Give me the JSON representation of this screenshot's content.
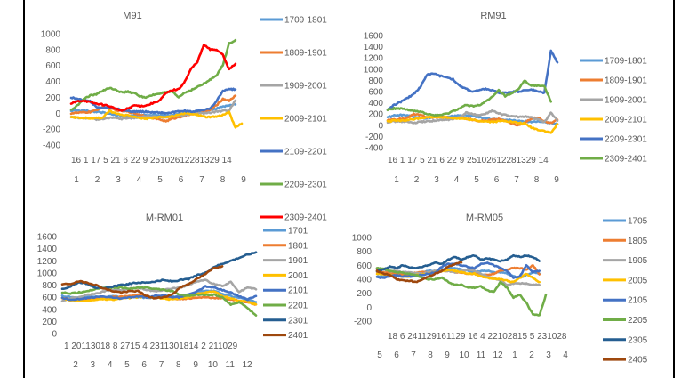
{
  "chart_data": [
    {
      "id": "m91",
      "type": "line",
      "title": "M91",
      "xlabel": "",
      "ylabel": "",
      "ylim": [
        -400,
        1000
      ],
      "yticks": [
        1000,
        800,
        600,
        400,
        200,
        0,
        -200,
        -400
      ],
      "xtick_days": "16 1 17 5 21 6 22 9 25102612281329 14",
      "xtick_months": [
        "1",
        "2",
        "3",
        "4",
        "5",
        "6",
        "7",
        "8",
        "9"
      ],
      "legend": "right",
      "grid": false,
      "series": [
        {
          "name": "1709-1801",
          "color": "#5B9BD5",
          "values": [
            30,
            35,
            30,
            25,
            20,
            10,
            -10,
            -20,
            -30,
            -30,
            -20,
            -25,
            -30,
            -20,
            -25,
            -30,
            -20,
            -10,
            0,
            10,
            20,
            30,
            40,
            60,
            80,
            100,
            110
          ]
        },
        {
          "name": "1809-1901",
          "color": "#ED7D31",
          "values": [
            0,
            5,
            10,
            15,
            40,
            80,
            60,
            40,
            30,
            20,
            0,
            -20,
            -40,
            -60,
            -80,
            -100,
            -70,
            -50,
            -30,
            -10,
            0,
            20,
            40,
            100,
            180,
            160,
            220
          ]
        },
        {
          "name": "1909-2001",
          "color": "#A5A5A5",
          "values": [
            -50,
            -55,
            -60,
            -60,
            -80,
            -70,
            -60,
            -60,
            -70,
            -60,
            -60,
            -50,
            -40,
            -40,
            -50,
            -50,
            -40,
            -30,
            -20,
            -10,
            0,
            0,
            10,
            20,
            30,
            40,
            160
          ]
        },
        {
          "name": "2009-2101",
          "color": "#FFC000",
          "values": [
            -50,
            -55,
            -60,
            -60,
            -60,
            -60,
            30,
            0,
            -20,
            -30,
            -40,
            -60,
            -70,
            -60,
            -50,
            -50,
            -40,
            -20,
            0,
            -10,
            -20,
            -40,
            -50,
            -40,
            -20,
            10,
            -180,
            -130
          ]
        },
        {
          "name": "2109-2201",
          "color": "#4472C4",
          "values": [
            200,
            180,
            160,
            150,
            80,
            60,
            80,
            60,
            40,
            30,
            20,
            20,
            20,
            10,
            10,
            0,
            10,
            20,
            30,
            20,
            30,
            40,
            60,
            150,
            280,
            300,
            300
          ]
        },
        {
          "name": "2209-2301",
          "color": "#70AD47",
          "values": [
            40,
            100,
            180,
            220,
            240,
            280,
            320,
            300,
            260,
            270,
            250,
            210,
            200,
            230,
            250,
            260,
            270,
            200,
            260,
            290,
            330,
            370,
            420,
            480,
            600,
            880,
            920
          ]
        },
        {
          "name": "2309-2401",
          "color": "#FF0000",
          "values": [
            120,
            150,
            160,
            140,
            120,
            110,
            90,
            60,
            30,
            60,
            100,
            90,
            100,
            130,
            160,
            250,
            290,
            300,
            400,
            560,
            650,
            860,
            800,
            800,
            740,
            550,
            620
          ]
        }
      ]
    },
    {
      "id": "rm91",
      "type": "line",
      "title": "RM91",
      "xlabel": "",
      "ylabel": "",
      "ylim": [
        -400,
        1600
      ],
      "yticks": [
        1600,
        1400,
        1200,
        1000,
        800,
        600,
        400,
        200,
        0,
        -200,
        -400
      ],
      "xtick_days": "16 1 17 5 21 6 22 9 25102612281329 14",
      "xtick_months": [
        "1",
        "2",
        "3",
        "4",
        "5",
        "6",
        "7",
        "8",
        "9"
      ],
      "legend": "right",
      "grid": false,
      "series": [
        {
          "name": "1709-1801",
          "color": "#5B9BD5",
          "values": [
            140,
            170,
            180,
            170,
            150,
            130,
            130,
            140,
            150,
            150,
            160,
            170,
            180,
            160,
            140,
            120,
            110,
            100,
            100,
            90,
            80,
            70,
            60,
            70,
            60,
            40,
            20
          ]
        },
        {
          "name": "1809-1901",
          "color": "#ED7D31",
          "values": [
            90,
            100,
            110,
            130,
            200,
            180,
            150,
            140,
            150,
            140,
            130,
            130,
            120,
            100,
            80,
            80,
            100,
            110,
            80,
            40,
            0,
            40,
            120,
            140,
            60,
            40,
            100
          ]
        },
        {
          "name": "1909-2001",
          "color": "#A5A5A5",
          "values": [
            60,
            70,
            70,
            60,
            40,
            60,
            70,
            80,
            90,
            100,
            110,
            140,
            220,
            200,
            180,
            200,
            260,
            210,
            180,
            160,
            150,
            160,
            140,
            100,
            60,
            220,
            80
          ]
        },
        {
          "name": "2009-2101",
          "color": "#FFC000",
          "values": [
            70,
            80,
            80,
            90,
            110,
            130,
            140,
            150,
            150,
            140,
            130,
            120,
            110,
            90,
            80,
            70,
            60,
            70,
            80,
            60,
            40,
            30,
            -40,
            -80,
            -100,
            -140,
            20
          ]
        },
        {
          "name": "2209-2301",
          "color": "#4472C4",
          "values": [
            280,
            360,
            420,
            480,
            560,
            680,
            900,
            920,
            880,
            860,
            820,
            700,
            650,
            600,
            620,
            650,
            620,
            580,
            580,
            600,
            600,
            620,
            640,
            600,
            580,
            1330,
            1120
          ]
        },
        {
          "name": "2309-2401",
          "color": "#70AD47",
          "values": [
            280,
            300,
            300,
            280,
            260,
            240,
            200,
            180,
            180,
            200,
            250,
            300,
            360,
            340,
            360,
            420,
            500,
            620,
            520,
            560,
            640,
            800,
            700,
            700,
            700,
            420
          ]
        }
      ]
    },
    {
      "id": "m-rm01",
      "type": "line",
      "title": "M-RM01",
      "xlabel": "",
      "ylabel": "",
      "ylim": [
        0,
        1600
      ],
      "yticks": [
        1600,
        1400,
        1200,
        1000,
        800,
        600,
        400,
        200,
        0
      ],
      "xtick_days": "1 20113018 8 2715 4 2311301814 2 211029",
      "xtick_months": [
        "2",
        "3",
        "4",
        "5",
        "6",
        "7",
        "8",
        "9",
        "10",
        "11",
        "12"
      ],
      "legend": "right",
      "grid": false,
      "series": [
        {
          "name": "1701",
          "color": "#5B9BD5",
          "values": [
            620,
            600,
            590,
            600,
            610,
            600,
            620,
            600,
            610,
            600,
            590,
            600,
            620,
            610,
            620,
            640,
            680,
            700,
            700,
            660,
            620,
            590,
            560,
            520
          ]
        },
        {
          "name": "1801",
          "color": "#ED7D31",
          "values": [
            580,
            570,
            560,
            560,
            570,
            590,
            600,
            610,
            620,
            640,
            620,
            600,
            590,
            580,
            570,
            580,
            590,
            600,
            590,
            580,
            560,
            540,
            520,
            480
          ]
        },
        {
          "name": "1901",
          "color": "#A5A5A5",
          "values": [
            540,
            580,
            600,
            640,
            660,
            700,
            720,
            720,
            740,
            760,
            720,
            700,
            720,
            740,
            760,
            800,
            860,
            880,
            820,
            780,
            850,
            680,
            760,
            730
          ]
        },
        {
          "name": "2001",
          "color": "#FFC000",
          "values": [
            580,
            550,
            540,
            540,
            560,
            570,
            560,
            580,
            590,
            600,
            610,
            600,
            580,
            560,
            580,
            600,
            650,
            680,
            700,
            620,
            580,
            540,
            520,
            480
          ]
        },
        {
          "name": "2101",
          "color": "#4472C4",
          "values": [
            590,
            560,
            570,
            590,
            600,
            610,
            590,
            580,
            600,
            610,
            600,
            620,
            630,
            600,
            600,
            640,
            700,
            780,
            760,
            720,
            680,
            620,
            560,
            620
          ]
        },
        {
          "name": "2201",
          "color": "#70AD47",
          "values": [
            680,
            660,
            680,
            700,
            740,
            760,
            760,
            760,
            740,
            760,
            760,
            740,
            720,
            700,
            640,
            620,
            640,
            640,
            640,
            600,
            480,
            520,
            420,
            300
          ]
        },
        {
          "name": "2301",
          "color": "#255E91",
          "values": [
            730,
            780,
            850,
            820,
            760,
            740,
            780,
            800,
            820,
            840,
            840,
            860,
            880,
            860,
            880,
            900,
            960,
            1000,
            1100,
            1150,
            1200,
            1250,
            1300,
            1340
          ]
        },
        {
          "name": "2401",
          "color": "#9E480E",
          "values": [
            810,
            820,
            860,
            840,
            800,
            740,
            700,
            680,
            700,
            700,
            620,
            580,
            600,
            640,
            760,
            820,
            900,
            980,
            1080,
            1110
          ]
        }
      ]
    },
    {
      "id": "m-rm05",
      "type": "line",
      "title": "M-RM05",
      "xlabel": "",
      "ylabel": "",
      "ylim": [
        -200,
        1000
      ],
      "yticks": [
        1000,
        800,
        600,
        400,
        200,
        0,
        -200
      ],
      "xtick_days": "18 6 241129161129 16 4 22102815 5 231028",
      "xtick_months": [
        "5",
        "6",
        "7",
        "8",
        "9",
        "10",
        "11",
        "12",
        "1",
        "2",
        "3",
        "4"
      ],
      "legend": "right",
      "grid": false,
      "series": [
        {
          "name": "1705",
          "color": "#5B9BD5",
          "values": [
            440,
            440,
            460,
            480,
            470,
            460,
            480,
            500,
            520,
            520,
            540,
            560,
            560,
            540,
            520,
            500,
            520,
            520,
            500,
            500,
            480,
            440,
            420,
            460,
            500,
            480
          ]
        },
        {
          "name": "1805",
          "color": "#ED7D31",
          "values": [
            500,
            500,
            490,
            480,
            470,
            480,
            490,
            500,
            500,
            510,
            520,
            520,
            500,
            500,
            480,
            480,
            460,
            460,
            480,
            520,
            540,
            560,
            560,
            540,
            600,
            470
          ]
        },
        {
          "name": "1905",
          "color": "#A5A5A5",
          "values": [
            560,
            540,
            520,
            520,
            500,
            500,
            490,
            480,
            500,
            520,
            520,
            520,
            500,
            520,
            540,
            520,
            480,
            440,
            420,
            380,
            320,
            340,
            340,
            340,
            320,
            320
          ]
        },
        {
          "name": "2005",
          "color": "#FFC000",
          "values": [
            480,
            470,
            460,
            450,
            440,
            440,
            460,
            470,
            480,
            500,
            520,
            540,
            520,
            500,
            480,
            480,
            440,
            420,
            400,
            400,
            380,
            360,
            420,
            480,
            420,
            360
          ]
        },
        {
          "name": "2105",
          "color": "#4472C4",
          "values": [
            430,
            420,
            440,
            460,
            440,
            440,
            450,
            460,
            480,
            500,
            580,
            620,
            620,
            600,
            580,
            560,
            620,
            640,
            600,
            560,
            520,
            420,
            440,
            600,
            500,
            520
          ]
        },
        {
          "name": "2205",
          "color": "#70AD47",
          "values": [
            560,
            550,
            520,
            500,
            490,
            480,
            460,
            420,
            400,
            400,
            420,
            360,
            320,
            320,
            280,
            280,
            300,
            240,
            220,
            360,
            280,
            140,
            180,
            60,
            -100,
            -120,
            180
          ]
        },
        {
          "name": "2305",
          "color": "#255E91",
          "values": [
            520,
            540,
            580,
            560,
            600,
            570,
            560,
            580,
            600,
            640,
            620,
            680,
            720,
            680,
            720,
            740,
            680,
            700,
            680,
            660,
            680,
            740,
            720,
            740,
            720,
            660
          ]
        },
        {
          "name": "2405",
          "color": "#9E480E",
          "values": [
            520,
            480,
            460,
            400,
            380,
            380,
            360,
            400,
            440,
            480,
            520,
            580,
            620,
            640
          ]
        }
      ]
    }
  ]
}
